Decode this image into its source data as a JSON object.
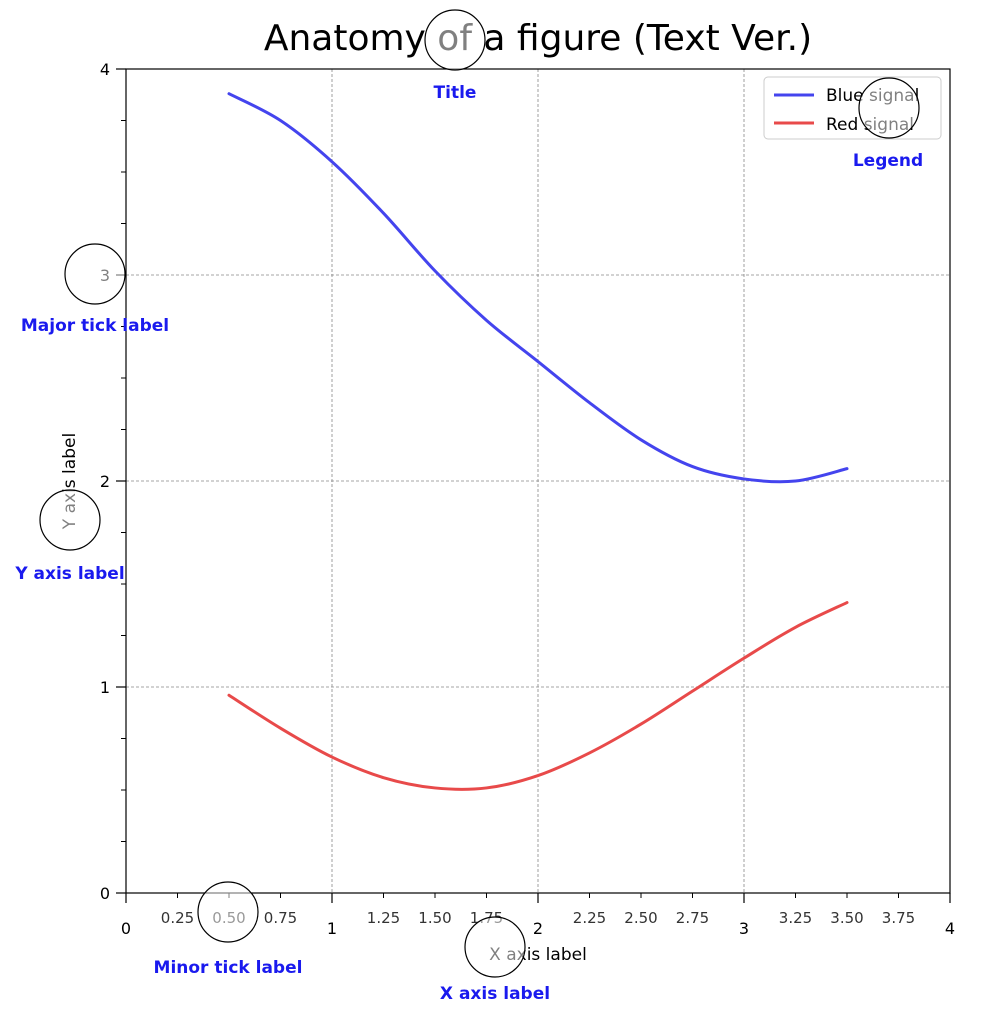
{
  "chart_data": {
    "type": "line",
    "title": "Anatomy of a figure (Text Ver.)",
    "xlabel": "X axis label",
    "ylabel": "Y axis label",
    "xlim": [
      0,
      4
    ],
    "ylim": [
      0,
      4
    ],
    "grid": true,
    "legend_position": "top-right",
    "x_major_ticks": [
      0,
      1,
      2,
      3,
      4
    ],
    "x_major_labels": [
      "0",
      "1",
      "2",
      "3",
      "4"
    ],
    "x_minor_ticks": [
      0.25,
      0.5,
      0.75,
      1.25,
      1.5,
      1.75,
      2.25,
      2.5,
      2.75,
      3.25,
      3.5,
      3.75
    ],
    "x_minor_labels": [
      "0.25",
      "0.50",
      "0.75",
      "1.25",
      "1.50",
      "1.75",
      "2.25",
      "2.50",
      "2.75",
      "3.25",
      "3.50",
      "3.75"
    ],
    "y_major_ticks": [
      0,
      1,
      2,
      3,
      4
    ],
    "y_major_labels": [
      "0",
      "1",
      "2",
      "3",
      "4"
    ],
    "y_minor_ticks": [
      0.25,
      0.5,
      0.75,
      1.25,
      1.5,
      1.75,
      2.25,
      2.5,
      2.75,
      3.25,
      3.5,
      3.75
    ],
    "x": [
      0.5,
      0.75,
      1.0,
      1.25,
      1.5,
      1.75,
      2.0,
      2.25,
      2.5,
      2.75,
      3.0,
      3.25,
      3.5
    ],
    "series": [
      {
        "name": "Blue signal",
        "color": "#4444ee",
        "values": [
          3.88,
          3.75,
          3.55,
          3.3,
          3.02,
          2.78,
          2.58,
          2.38,
          2.2,
          2.07,
          2.01,
          2.0,
          2.06
        ]
      },
      {
        "name": "Red signal",
        "color": "#e84a4a",
        "values": [
          0.96,
          0.8,
          0.66,
          0.56,
          0.51,
          0.51,
          0.57,
          0.68,
          0.82,
          0.98,
          1.14,
          1.29,
          1.41
        ]
      }
    ],
    "annotations": [
      {
        "label": "Title",
        "color": "#1a1aee"
      },
      {
        "label": "Legend",
        "color": "#1a1aee"
      },
      {
        "label": "Major tick label",
        "color": "#1a1aee"
      },
      {
        "label": "Y axis label",
        "color": "#1a1aee"
      },
      {
        "label": "Minor tick label",
        "color": "#1a1aee"
      },
      {
        "label": "X axis label",
        "color": "#1a1aee"
      }
    ]
  }
}
